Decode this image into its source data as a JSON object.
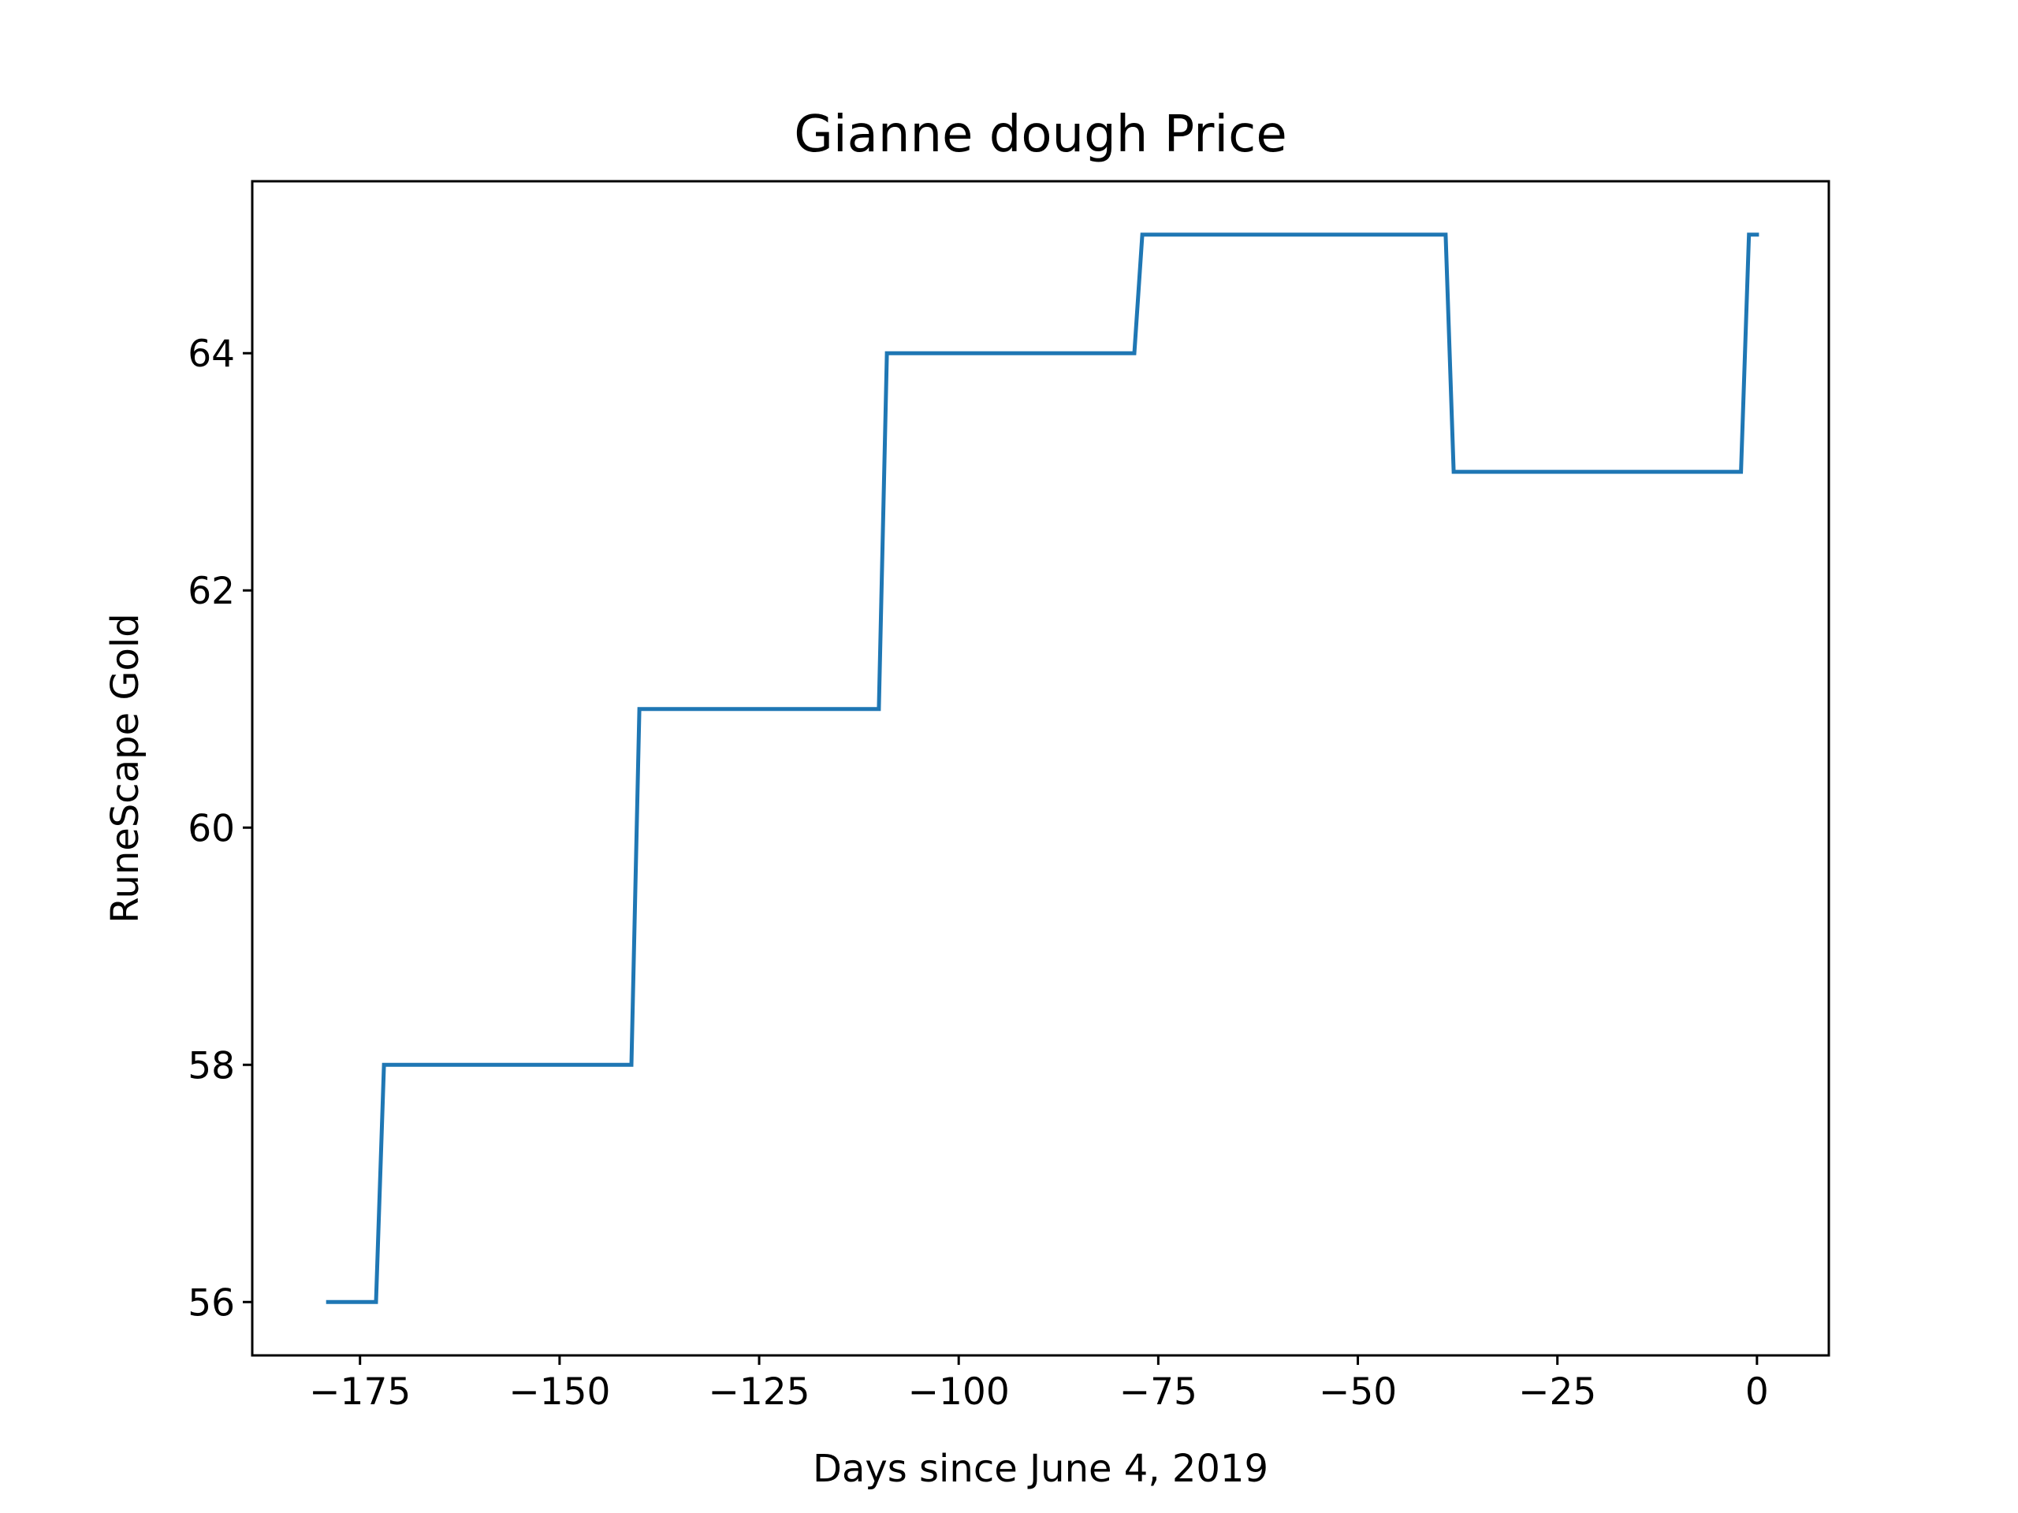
{
  "chart_data": {
    "type": "line",
    "title": "Gianne dough Price",
    "xlabel": "Days since June 4, 2019",
    "ylabel": "RuneScape Gold",
    "xlim": [
      -188.5,
      9
    ],
    "ylim": [
      55.55,
      65.45
    ],
    "xticks": [
      -175,
      -150,
      -125,
      -100,
      -75,
      -50,
      -25,
      0
    ],
    "xtick_labels": [
      "−175",
      "−150",
      "−125",
      "−100",
      "−75",
      "−50",
      "−25",
      "0"
    ],
    "yticks": [
      56,
      58,
      60,
      62,
      64
    ],
    "ytick_labels": [
      "56",
      "58",
      "60",
      "62",
      "64"
    ],
    "grid": false,
    "color": "#1f77b4",
    "series": [
      {
        "x": [
          -179,
          -173,
          -172,
          -141,
          -140,
          -110,
          -109,
          -78,
          -77,
          -39,
          -38,
          -2,
          -1,
          0
        ],
        "y": [
          56,
          56,
          58,
          58,
          61,
          61,
          64,
          64,
          65,
          65,
          63,
          63,
          65,
          65
        ]
      }
    ]
  }
}
